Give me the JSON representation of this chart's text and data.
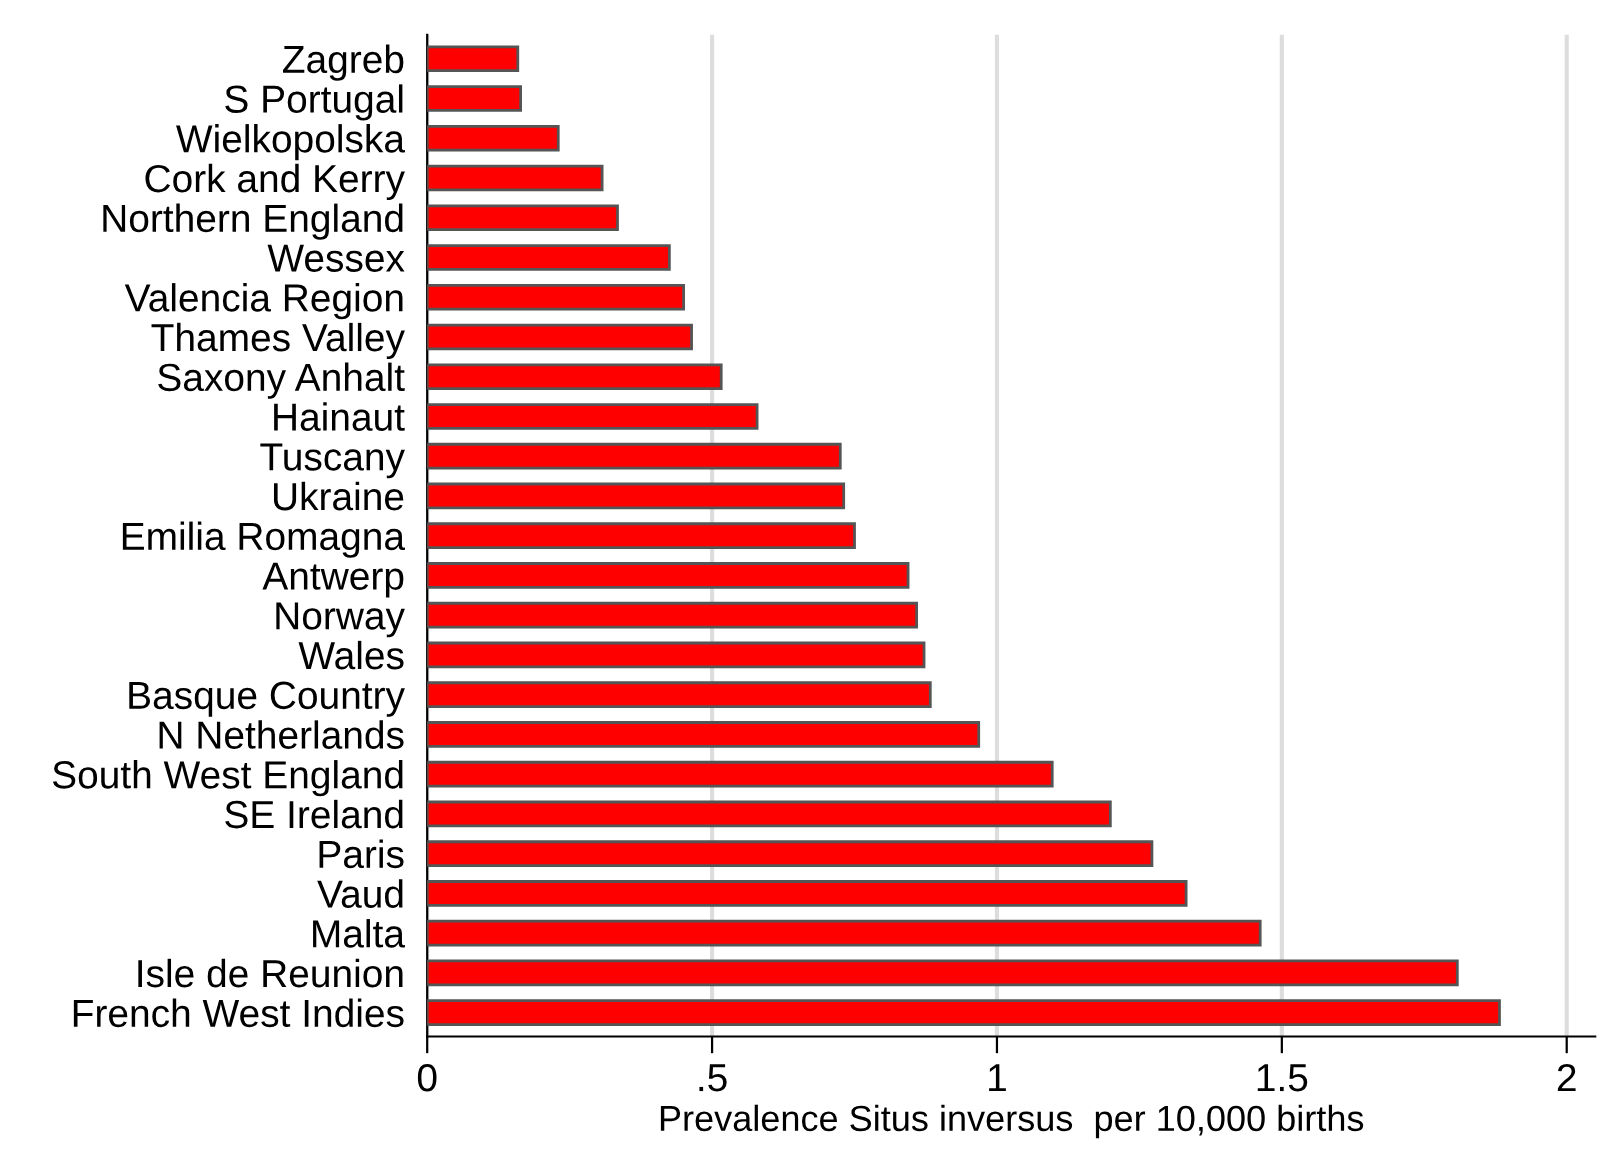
{
  "chart_data": {
    "type": "bar",
    "orientation": "horizontal",
    "xlabel": "Prevalence Situs inversus  per 10,000 births",
    "categories": [
      "Zagreb",
      "S Portugal",
      "Wielkopolska",
      "Cork and Kerry",
      "Northern England",
      "Wessex",
      "Valencia Region",
      "Thames Valley",
      "Saxony Anhalt",
      "Hainaut",
      "Tuscany",
      "Ukraine",
      "Emilia Romagna",
      "Antwerp",
      "Norway",
      "Wales",
      "Basque Country",
      "N Netherlands",
      "South West England",
      "SE Ireland",
      "Paris",
      "Vaud",
      "Malta",
      "Isle de Reunion",
      "French West Indies"
    ],
    "values": [
      0.159,
      0.164,
      0.23,
      0.307,
      0.334,
      0.425,
      0.45,
      0.464,
      0.516,
      0.579,
      0.725,
      0.731,
      0.75,
      0.844,
      0.859,
      0.872,
      0.883,
      0.968,
      1.097,
      1.199,
      1.272,
      1.332,
      1.462,
      1.808,
      1.882
    ],
    "color": "#ff0000",
    "xlim": [
      0,
      2.05
    ],
    "xticks": [
      0,
      {
        "value": 0.5,
        "label": ".5"
      },
      1,
      1.5,
      2
    ],
    "grid": "x"
  }
}
